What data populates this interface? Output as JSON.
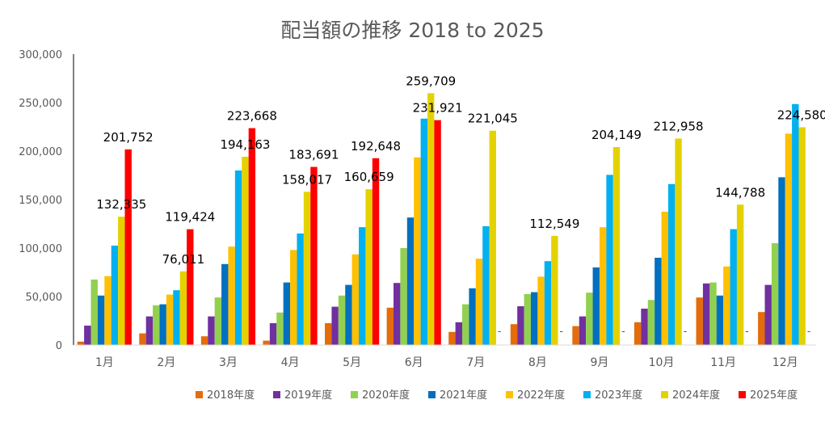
{
  "chart_data": {
    "type": "bar",
    "title": "配当額の推移  2018 to 2025",
    "xlabel": "",
    "ylabel": "",
    "ylim": [
      0,
      300000
    ],
    "yticks": [
      "0",
      "50,000",
      "100,000",
      "150,000",
      "200,000",
      "250,000",
      "300,000"
    ],
    "categories": [
      "1月",
      "2月",
      "3月",
      "4月",
      "5月",
      "6月",
      "7月",
      "8月",
      "9月",
      "10月",
      "11月",
      "12月"
    ],
    "grid": false,
    "legend_position": "bottom-right",
    "series": [
      {
        "name": "2018年度",
        "color": "#E46C0A",
        "values": [
          3500,
          12000,
          9000,
          4500,
          22500,
          38500,
          13500,
          21500,
          19500,
          23500,
          49000,
          34000
        ]
      },
      {
        "name": "2019年度",
        "color": "#7030A0",
        "values": [
          20000,
          29500,
          29500,
          22500,
          39500,
          64000,
          23500,
          40000,
          29500,
          37500,
          63500,
          62000
        ]
      },
      {
        "name": "2020年度",
        "color": "#92D050",
        "values": [
          67500,
          41000,
          49000,
          33500,
          51000,
          100000,
          42000,
          52500,
          54000,
          46500,
          64500,
          105000
        ]
      },
      {
        "name": "2021年度",
        "color": "#0070C0",
        "values": [
          51000,
          42000,
          83500,
          64500,
          62000,
          131500,
          58500,
          54500,
          80000,
          90000,
          51000,
          173000
        ]
      },
      {
        "name": "2022年度",
        "color": "#FFC000",
        "values": [
          71000,
          52000,
          101500,
          98000,
          93500,
          193500,
          89000,
          70500,
          121500,
          137500,
          81000,
          218000
        ]
      },
      {
        "name": "2023年度",
        "color": "#00B0F0",
        "values": [
          102500,
          56500,
          180000,
          115000,
          121500,
          233500,
          122500,
          86500,
          175500,
          166000,
          119500,
          248500
        ]
      },
      {
        "name": "2024年度",
        "color": "#E4D200",
        "values": [
          132335,
          76011,
          194163,
          158017,
          160659,
          259709,
          221045,
          112549,
          204149,
          212958,
          144788,
          224580
        ]
      },
      {
        "name": "2025年度",
        "color": "#FF0000",
        "values": [
          201752,
          119424,
          223668,
          183691,
          192648,
          231921,
          0,
          0,
          0,
          0,
          0,
          0
        ]
      }
    ],
    "data_labels": [
      {
        "series": "2024年度",
        "category": "1月",
        "text": "132,335"
      },
      {
        "series": "2024年度",
        "category": "2月",
        "text": "76,011"
      },
      {
        "series": "2024年度",
        "category": "3月",
        "text": "194,163"
      },
      {
        "series": "2024年度",
        "category": "4月",
        "text": "158,017"
      },
      {
        "series": "2024年度",
        "category": "5月",
        "text": "160,659"
      },
      {
        "series": "2024年度",
        "category": "6月",
        "text": "259,709"
      },
      {
        "series": "2024年度",
        "category": "7月",
        "text": "221,045"
      },
      {
        "series": "2024年度",
        "category": "8月",
        "text": "112,549"
      },
      {
        "series": "2024年度",
        "category": "9月",
        "text": "204,149"
      },
      {
        "series": "2024年度",
        "category": "10月",
        "text": "212,958"
      },
      {
        "series": "2024年度",
        "category": "11月",
        "text": "144,788"
      },
      {
        "series": "2024年度",
        "category": "12月",
        "text": "224,580"
      },
      {
        "series": "2025年度",
        "category": "1月",
        "text": "201,752"
      },
      {
        "series": "2025年度",
        "category": "2月",
        "text": "119,424"
      },
      {
        "series": "2025年度",
        "category": "3月",
        "text": "223,668"
      },
      {
        "series": "2025年度",
        "category": "4月",
        "text": "183,691"
      },
      {
        "series": "2025年度",
        "category": "5月",
        "text": "192,648"
      },
      {
        "series": "2025年度",
        "category": "6月",
        "text": "231,921"
      },
      {
        "series": "2025年度",
        "category": "7月",
        "text": "-"
      },
      {
        "series": "2025年度",
        "category": "8月",
        "text": "-"
      },
      {
        "series": "2025年度",
        "category": "9月",
        "text": "-"
      },
      {
        "series": "2025年度",
        "category": "10月",
        "text": "-"
      },
      {
        "series": "2025年度",
        "category": "11月",
        "text": "-"
      },
      {
        "series": "2025年度",
        "category": "12月",
        "text": "-"
      }
    ]
  }
}
